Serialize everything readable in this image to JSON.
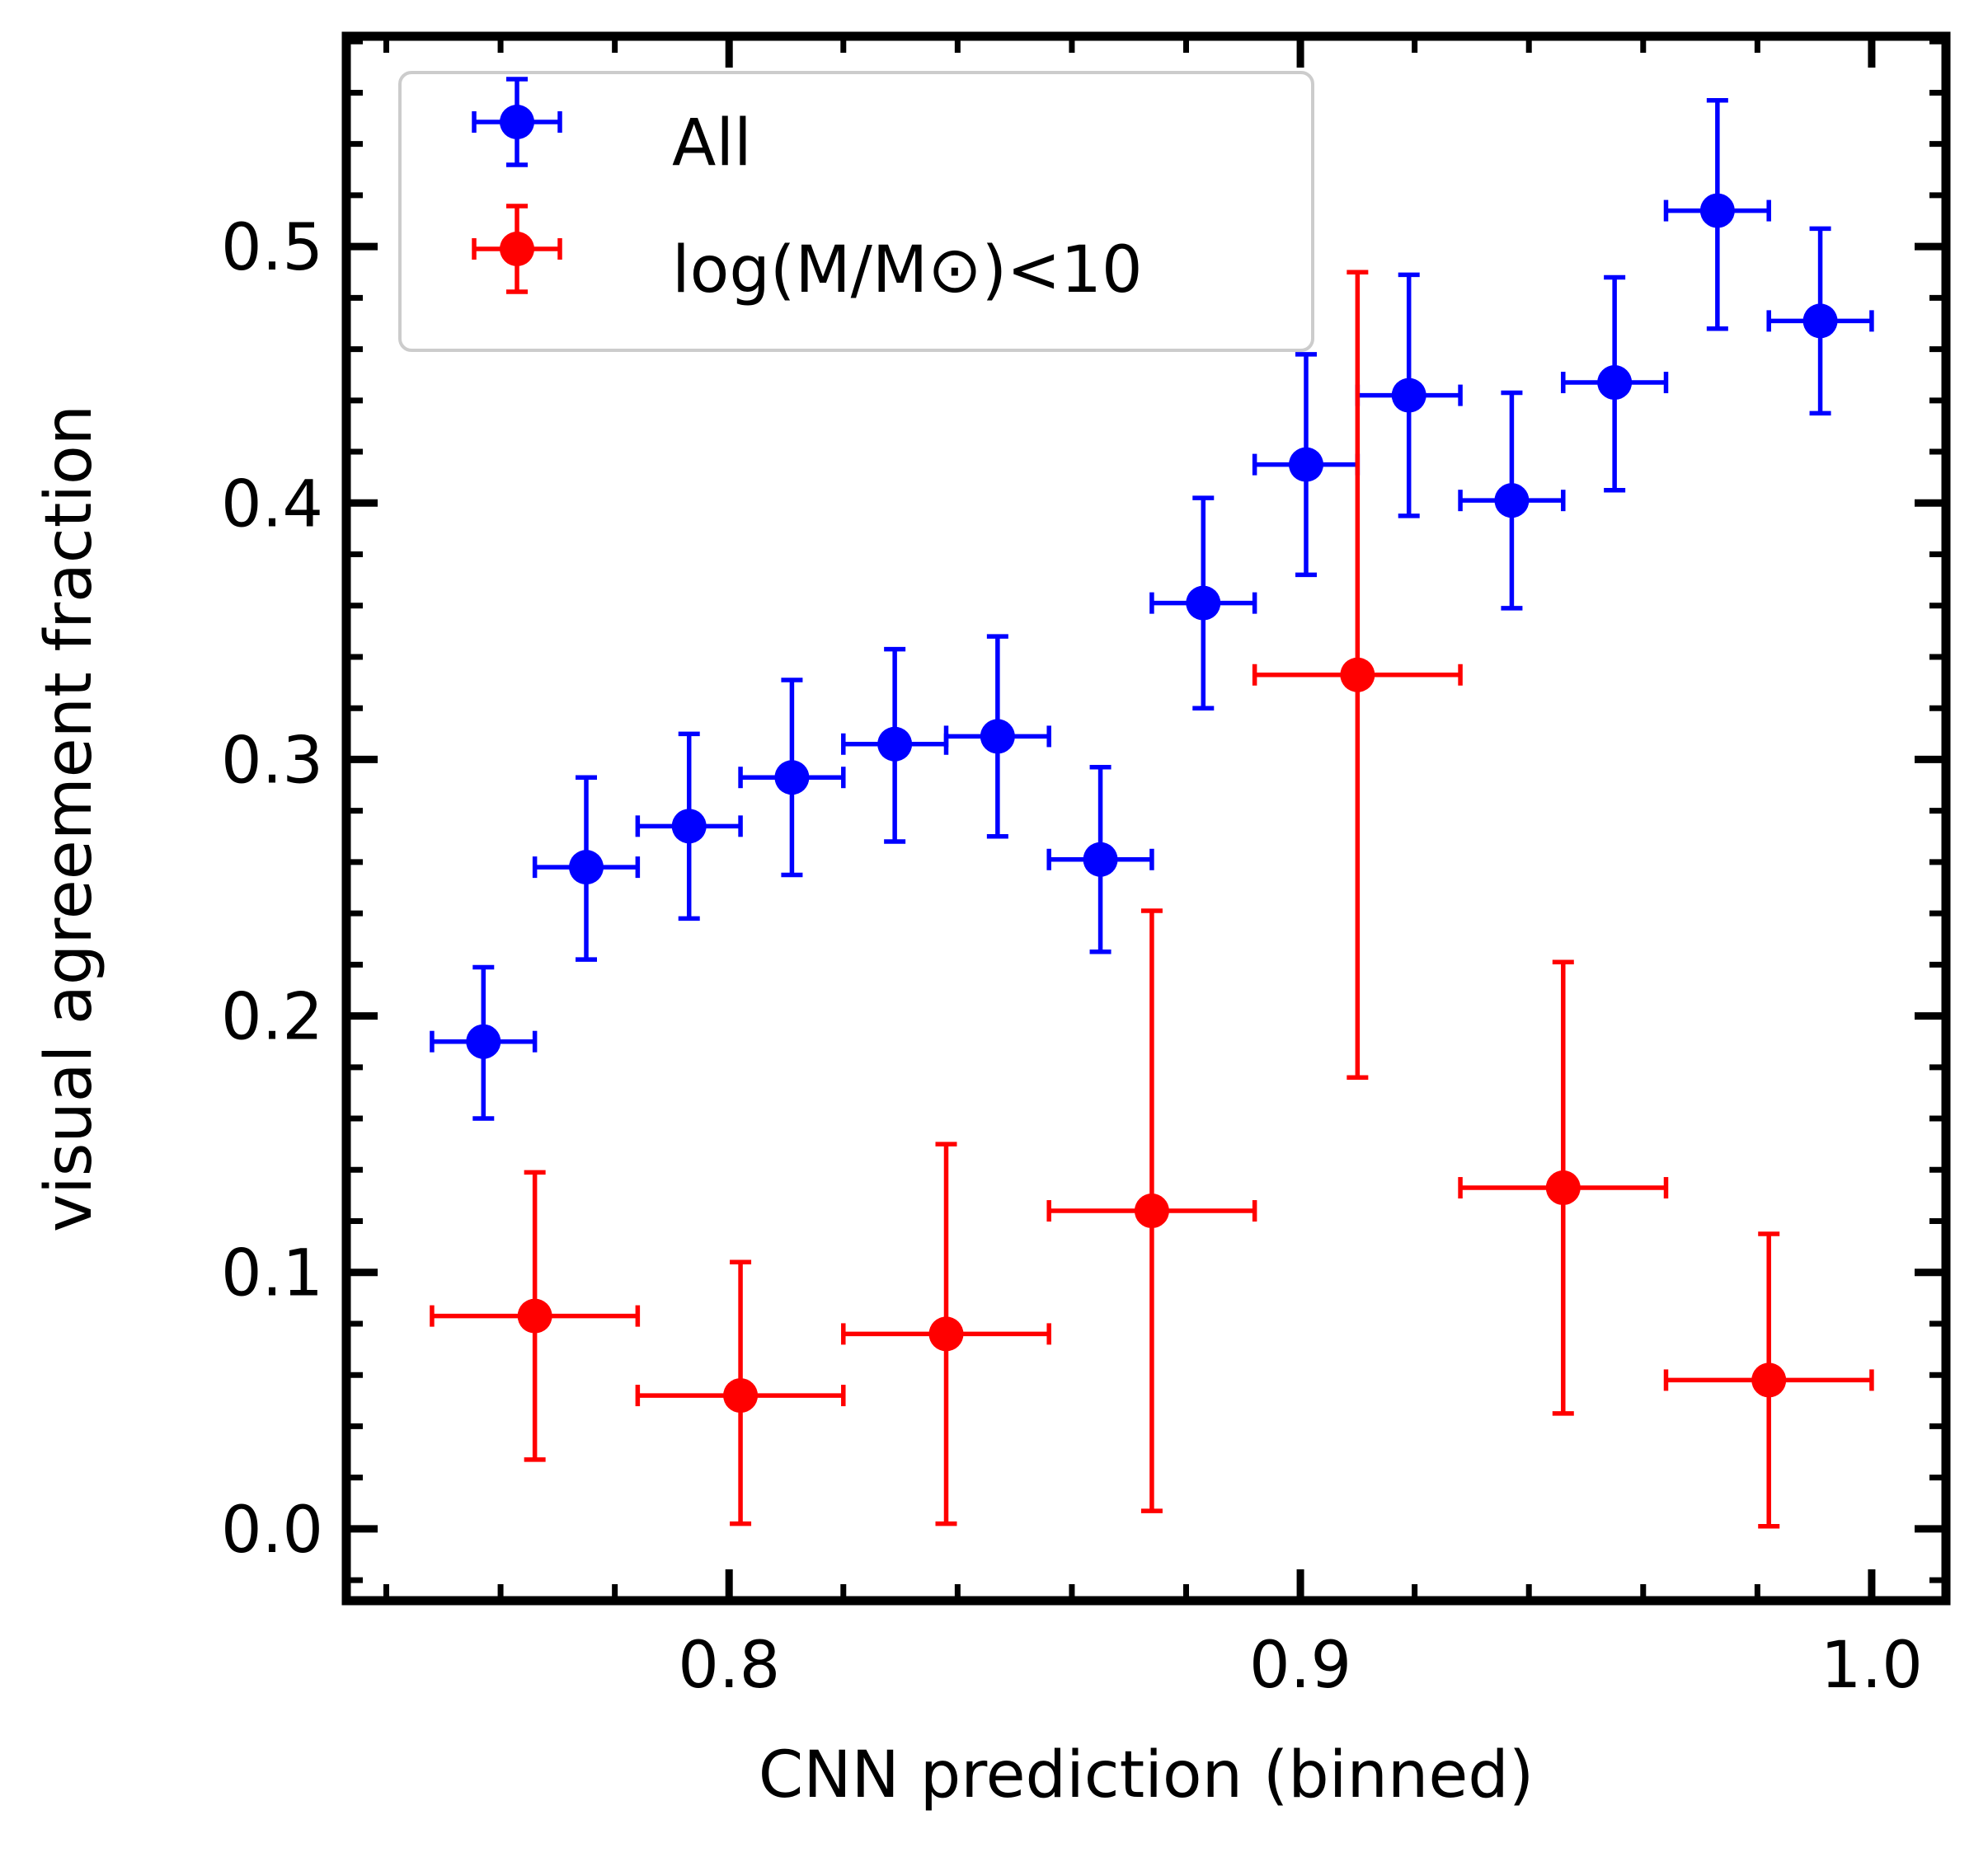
{
  "chart_data": {
    "type": "scatter",
    "xlabel": "CNN prediction (binned)",
    "ylabel": "visual agreement fraction",
    "xlim": [
      0.733,
      1.013
    ],
    "ylim": [
      -0.028,
      0.582
    ],
    "x_ticks": [
      0.8,
      0.9,
      1.0
    ],
    "x_tick_labels": [
      "0.8",
      "0.9",
      "1.0"
    ],
    "y_ticks": [
      0.0,
      0.1,
      0.2,
      0.3,
      0.4,
      0.5
    ],
    "y_tick_labels": [
      "0.0",
      "0.1",
      "0.2",
      "0.3",
      "0.4",
      "0.5"
    ],
    "legend_position": "top-left",
    "grid": false,
    "series": [
      {
        "name": "All",
        "color": "#0000ff",
        "points": [
          {
            "x": 0.757,
            "y": 0.19,
            "xerr": 0.009,
            "yerr_lo": 0.03,
            "yerr_hi": 0.029
          },
          {
            "x": 0.775,
            "y": 0.258,
            "xerr": 0.009,
            "yerr_lo": 0.036,
            "yerr_hi": 0.035
          },
          {
            "x": 0.793,
            "y": 0.274,
            "xerr": 0.009,
            "yerr_lo": 0.036,
            "yerr_hi": 0.036
          },
          {
            "x": 0.811,
            "y": 0.293,
            "xerr": 0.009,
            "yerr_lo": 0.038,
            "yerr_hi": 0.038
          },
          {
            "x": 0.829,
            "y": 0.306,
            "xerr": 0.009,
            "yerr_lo": 0.038,
            "yerr_hi": 0.037
          },
          {
            "x": 0.847,
            "y": 0.309,
            "xerr": 0.009,
            "yerr_lo": 0.039,
            "yerr_hi": 0.039
          },
          {
            "x": 0.865,
            "y": 0.261,
            "xerr": 0.009,
            "yerr_lo": 0.036,
            "yerr_hi": 0.036
          },
          {
            "x": 0.883,
            "y": 0.361,
            "xerr": 0.009,
            "yerr_lo": 0.041,
            "yerr_hi": 0.041
          },
          {
            "x": 0.901,
            "y": 0.415,
            "xerr": 0.009,
            "yerr_lo": 0.043,
            "yerr_hi": 0.043
          },
          {
            "x": 0.919,
            "y": 0.442,
            "xerr": 0.009,
            "yerr_lo": 0.047,
            "yerr_hi": 0.047
          },
          {
            "x": 0.937,
            "y": 0.401,
            "xerr": 0.009,
            "yerr_lo": 0.042,
            "yerr_hi": 0.042
          },
          {
            "x": 0.955,
            "y": 0.447,
            "xerr": 0.009,
            "yerr_lo": 0.042,
            "yerr_hi": 0.041
          },
          {
            "x": 0.973,
            "y": 0.514,
            "xerr": 0.009,
            "yerr_lo": 0.046,
            "yerr_hi": 0.043
          },
          {
            "x": 0.991,
            "y": 0.471,
            "xerr": 0.009,
            "yerr_lo": 0.036,
            "yerr_hi": 0.036
          }
        ]
      },
      {
        "name": "log(M/M⊙)<10",
        "color": "#ff0000",
        "points": [
          {
            "x": 0.766,
            "y": 0.083,
            "xerr": 0.018,
            "yerr_lo": 0.056,
            "yerr_hi": 0.056
          },
          {
            "x": 0.802,
            "y": 0.052,
            "xerr": 0.018,
            "yerr_lo": 0.05,
            "yerr_hi": 0.052
          },
          {
            "x": 0.838,
            "y": 0.076,
            "xerr": 0.018,
            "yerr_lo": 0.074,
            "yerr_hi": 0.074
          },
          {
            "x": 0.874,
            "y": 0.124,
            "xerr": 0.018,
            "yerr_lo": 0.117,
            "yerr_hi": 0.117
          },
          {
            "x": 0.91,
            "y": 0.333,
            "xerr": 0.018,
            "yerr_lo": 0.157,
            "yerr_hi": 0.157
          },
          {
            "x": 0.946,
            "y": 0.133,
            "xerr": 0.018,
            "yerr_lo": 0.088,
            "yerr_hi": 0.088
          },
          {
            "x": 0.982,
            "y": 0.058,
            "xerr": 0.018,
            "yerr_lo": 0.057,
            "yerr_hi": 0.057
          }
        ]
      }
    ]
  }
}
